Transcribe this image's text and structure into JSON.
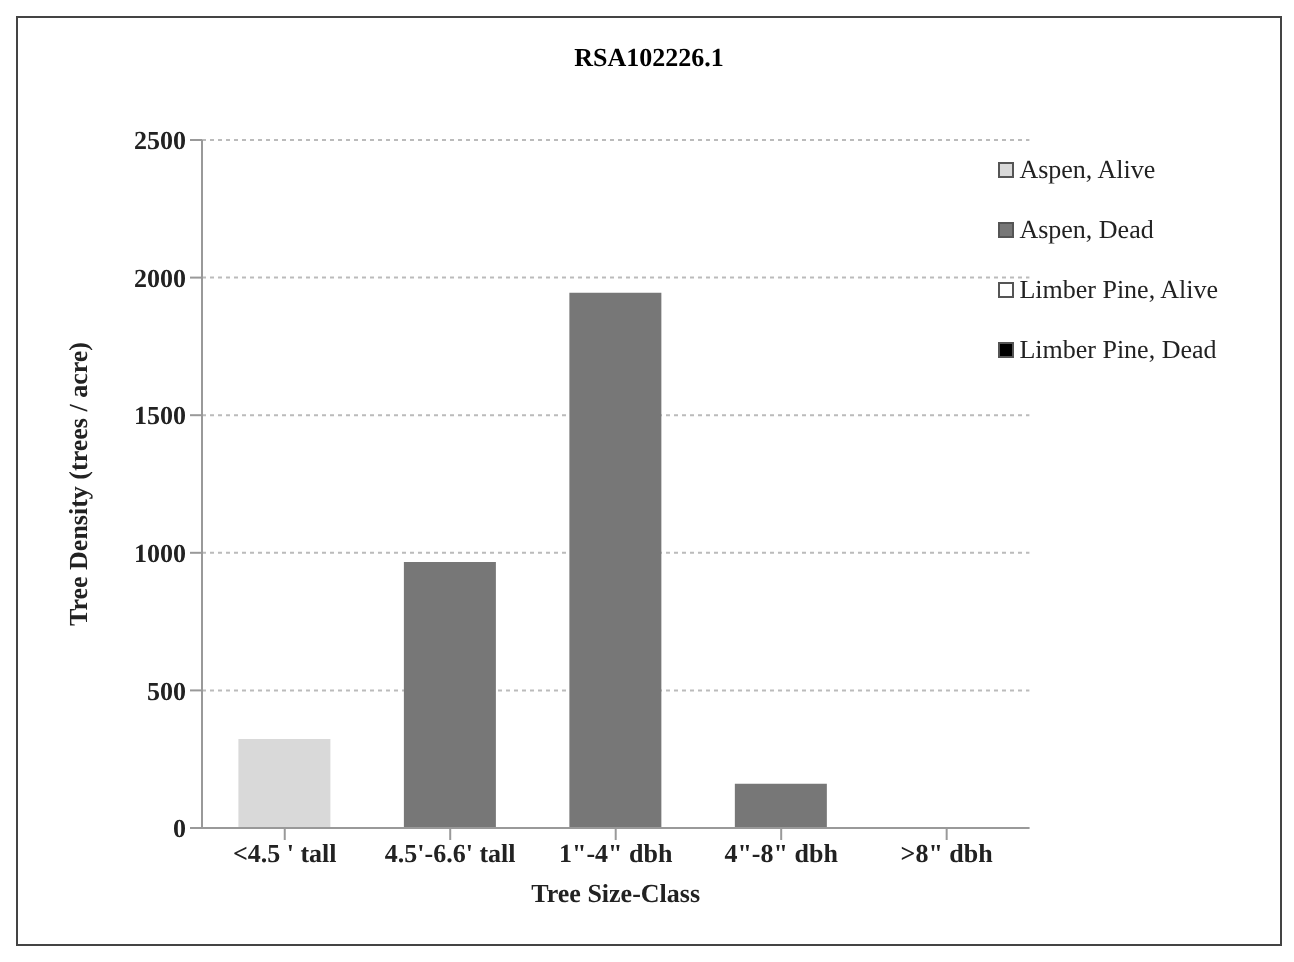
{
  "chart_data": {
    "type": "bar",
    "title": "RSA102226.1",
    "xlabel": "Tree Size-Class",
    "ylabel": "Tree Density (trees / acre)",
    "categories": [
      "<4.5 ' tall",
      "4.5'-6.6' tall",
      "1\"-4\" dbh",
      "4\"-8\" dbh",
      ">8\" dbh"
    ],
    "series": [
      {
        "name": "Aspen, Alive",
        "color": "#d9d9d9",
        "values": [
          323,
          0,
          0,
          0,
          0
        ]
      },
      {
        "name": "Aspen, Dead",
        "color": "#777777",
        "values": [
          0,
          967,
          1945,
          161,
          0
        ]
      },
      {
        "name": "Limber Pine, Alive",
        "color": "#ffffff",
        "values": [
          0,
          0,
          0,
          0,
          0
        ]
      },
      {
        "name": "Limber Pine, Dead",
        "color": "#000000",
        "values": [
          0,
          0,
          0,
          0,
          0
        ]
      }
    ],
    "stacked": true,
    "ylim": [
      0,
      2500
    ],
    "yticks": [
      0,
      500,
      1000,
      1500,
      2000,
      2500
    ],
    "grid": "y",
    "legend": "top right"
  }
}
